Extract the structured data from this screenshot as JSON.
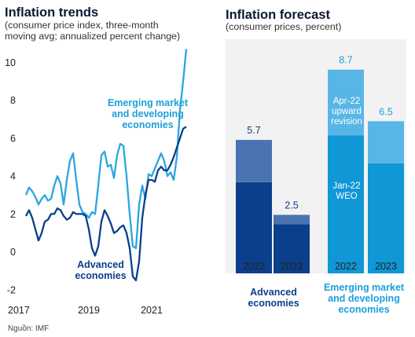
{
  "source": "Nguồn: IMF",
  "colors": {
    "advanced_dark": "#0b3f8c",
    "advanced_light": "#4b73b2",
    "emerging_dark": "#0f97d6",
    "emerging_light": "#58b6e6",
    "advanced_text": "#0b3f8c",
    "emerging_text": "#1ba0da"
  },
  "chart_data": [
    {
      "type": "line",
      "title": "Inflation trends",
      "subtitle_lines": [
        "(consumer price index, three-month",
        "moving avg; annualized percent change)"
      ],
      "ylim": [
        -2,
        10.8
      ],
      "y_ticks": [
        "10",
        "8",
        "6",
        "4",
        "2",
        "0",
        "-2"
      ],
      "x_ticks": [
        "2017",
        "2019",
        "2021"
      ],
      "x_tick_positions": [
        2017,
        2019,
        2021
      ],
      "xlim": [
        2017,
        2022.2
      ],
      "grid": false,
      "annotations": {
        "emerging": [
          "Emerging market",
          "and developing",
          "economies"
        ],
        "advanced": [
          "Advanced",
          "economies"
        ]
      },
      "series": [
        {
          "name": "Emerging market and developing economies",
          "x": [
            2017.0,
            2017.1,
            2017.2,
            2017.3,
            2017.4,
            2017.5,
            2017.6,
            2017.7,
            2017.8,
            2017.9,
            2018.0,
            2018.1,
            2018.2,
            2018.3,
            2018.4,
            2018.5,
            2018.6,
            2018.7,
            2018.8,
            2018.9,
            2019.0,
            2019.1,
            2019.2,
            2019.3,
            2019.4,
            2019.5,
            2019.6,
            2019.7,
            2019.8,
            2019.9,
            2020.0,
            2020.1,
            2020.2,
            2020.3,
            2020.4,
            2020.5,
            2020.6,
            2020.7,
            2020.8,
            2020.9,
            2021.0,
            2021.1,
            2021.2,
            2021.3,
            2021.4,
            2021.5,
            2021.6,
            2021.7,
            2021.8,
            2021.9,
            2022.0,
            2022.1
          ],
          "values": [
            3.0,
            3.4,
            3.2,
            2.9,
            2.5,
            2.8,
            3.0,
            2.7,
            2.8,
            3.5,
            4.0,
            3.6,
            2.5,
            3.8,
            4.8,
            5.2,
            3.8,
            2.5,
            2.1,
            2.0,
            1.8,
            2.1,
            2.0,
            3.5,
            5.1,
            5.3,
            4.5,
            4.6,
            3.9,
            5.1,
            5.7,
            5.6,
            4.0,
            2.0,
            0.3,
            0.2,
            2.5,
            3.5,
            2.8,
            4.1,
            4.0,
            4.4,
            4.8,
            5.2,
            4.8,
            4.0,
            4.2,
            3.8,
            5.0,
            7.5,
            9.0,
            10.7
          ]
        },
        {
          "name": "Advanced economies",
          "x": [
            2017.0,
            2017.1,
            2017.2,
            2017.3,
            2017.4,
            2017.5,
            2017.6,
            2017.7,
            2017.8,
            2017.9,
            2018.0,
            2018.1,
            2018.2,
            2018.3,
            2018.4,
            2018.5,
            2018.6,
            2018.7,
            2018.8,
            2018.9,
            2019.0,
            2019.1,
            2019.2,
            2019.3,
            2019.4,
            2019.5,
            2019.6,
            2019.7,
            2019.8,
            2019.9,
            2020.0,
            2020.1,
            2020.2,
            2020.3,
            2020.4,
            2020.5,
            2020.6,
            2020.7,
            2020.8,
            2020.9,
            2021.0,
            2021.1,
            2021.2,
            2021.3,
            2021.4,
            2021.5,
            2021.6,
            2021.7,
            2021.8,
            2021.9,
            2022.0,
            2022.1
          ],
          "values": [
            1.9,
            2.2,
            1.8,
            1.2,
            0.6,
            1.0,
            1.6,
            1.7,
            2.0,
            2.0,
            2.3,
            2.2,
            1.9,
            1.7,
            1.8,
            2.1,
            2.0,
            2.0,
            2.0,
            1.9,
            1.2,
            0.2,
            -0.2,
            0.3,
            1.6,
            2.2,
            1.9,
            1.5,
            1.0,
            1.1,
            1.3,
            1.4,
            1.0,
            0.2,
            -1.3,
            -1.5,
            -0.5,
            1.8,
            3.0,
            3.8,
            3.8,
            3.7,
            4.3,
            4.5,
            4.3,
            4.3,
            4.6,
            5.0,
            5.5,
            6.0,
            6.5,
            6.6
          ]
        }
      ]
    },
    {
      "type": "bar",
      "stacked": true,
      "title": "Inflation forecast",
      "subtitle": "(consumer prices, percent)",
      "categories": [
        "2022",
        "2023",
        "2022",
        "2023"
      ],
      "groups": [
        {
          "label_lines": [
            "Advanced",
            "economies"
          ],
          "categories": [
            0,
            1
          ]
        },
        {
          "label_lines": [
            "Emerging market",
            "and developing",
            "economies"
          ],
          "categories": [
            2,
            3
          ]
        }
      ],
      "series": [
        {
          "name": "Jan-22 WEO",
          "label_lines": [
            "Jan-22",
            "WEO"
          ],
          "values": [
            3.9,
            2.1,
            5.9,
            4.7
          ]
        },
        {
          "name": "Apr-22 upward revision",
          "label_lines": [
            "Apr-22",
            "upward",
            "revision"
          ],
          "values": [
            1.8,
            0.4,
            2.8,
            1.8
          ]
        }
      ],
      "totals": [
        "5.7",
        "2.5",
        "8.7",
        "6.5"
      ],
      "ylim": [
        0,
        10
      ],
      "grid": false
    }
  ]
}
